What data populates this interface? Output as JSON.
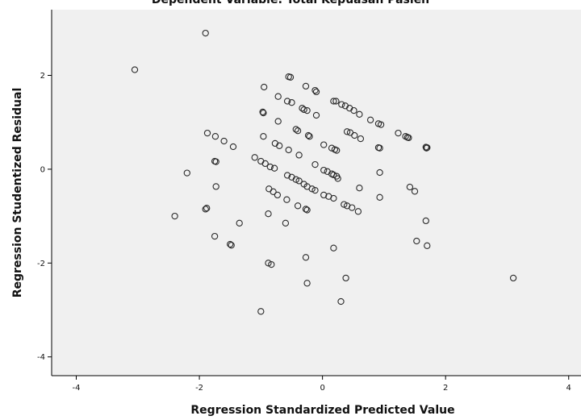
{
  "chart_data": {
    "type": "scatter",
    "title": "Dependent Variable: Total Kepuasan Pasien",
    "xlabel": "Regression Standardized Predicted Value",
    "ylabel": "Regression Studentized Residual",
    "xlim": [
      -4.4,
      4.2
    ],
    "ylim": [
      -4.4,
      3.4
    ],
    "xticks": [
      -4,
      -2,
      0,
      2,
      4
    ],
    "yticks": [
      2,
      0,
      -2,
      -4
    ],
    "xtick_labels": [
      "-4",
      "-2",
      "0",
      "2",
      "4"
    ],
    "ytick_labels": [
      "2",
      "0",
      "-2",
      "-4"
    ],
    "grid": false,
    "colors": {
      "plot_background": "#f0f0f0",
      "marker_stroke": "#2a2a2a",
      "axis": "#000000"
    },
    "points": [
      [
        -3.05,
        2.12
      ],
      [
        -1.9,
        2.9
      ],
      [
        -0.55,
        1.97
      ],
      [
        -0.52,
        1.96
      ],
      [
        -0.95,
        1.75
      ],
      [
        -0.27,
        1.77
      ],
      [
        -0.12,
        1.68
      ],
      [
        -0.1,
        1.65
      ],
      [
        -0.72,
        1.55
      ],
      [
        -0.57,
        1.45
      ],
      [
        -0.5,
        1.42
      ],
      [
        -0.33,
        1.3
      ],
      [
        -0.3,
        1.27
      ],
      [
        -0.25,
        1.25
      ],
      [
        -0.1,
        1.15
      ],
      [
        -0.97,
        1.22
      ],
      [
        -0.96,
        1.2
      ],
      [
        0.18,
        1.45
      ],
      [
        0.22,
        1.45
      ],
      [
        0.31,
        1.38
      ],
      [
        0.37,
        1.35
      ],
      [
        0.44,
        1.3
      ],
      [
        0.51,
        1.25
      ],
      [
        0.6,
        1.17
      ],
      [
        -0.72,
        1.02
      ],
      [
        -0.43,
        0.85
      ],
      [
        -0.4,
        0.82
      ],
      [
        -0.23,
        0.72
      ],
      [
        -0.21,
        0.7
      ],
      [
        0.4,
        0.8
      ],
      [
        0.45,
        0.78
      ],
      [
        0.52,
        0.72
      ],
      [
        0.62,
        0.65
      ],
      [
        0.78,
        1.05
      ],
      [
        0.91,
        0.97
      ],
      [
        0.95,
        0.95
      ],
      [
        1.23,
        0.77
      ],
      [
        1.35,
        0.7
      ],
      [
        1.38,
        0.68
      ],
      [
        1.4,
        0.67
      ],
      [
        -1.87,
        0.77
      ],
      [
        -1.74,
        0.7
      ],
      [
        -1.6,
        0.6
      ],
      [
        -1.45,
        0.48
      ],
      [
        -0.96,
        0.7
      ],
      [
        -0.77,
        0.55
      ],
      [
        -0.7,
        0.5
      ],
      [
        -0.55,
        0.41
      ],
      [
        -0.38,
        0.3
      ],
      [
        0.02,
        0.52
      ],
      [
        0.15,
        0.45
      ],
      [
        0.2,
        0.42
      ],
      [
        0.23,
        0.4
      ],
      [
        0.91,
        0.46
      ],
      [
        0.93,
        0.45
      ],
      [
        1.68,
        0.47
      ],
      [
        1.7,
        0.46
      ],
      [
        1.69,
        0.45
      ],
      [
        -1.75,
        0.17
      ],
      [
        -1.73,
        0.16
      ],
      [
        -2.2,
        -0.08
      ],
      [
        -1.1,
        0.25
      ],
      [
        -1.0,
        0.17
      ],
      [
        -0.93,
        0.12
      ],
      [
        -0.85,
        0.05
      ],
      [
        -0.78,
        0.02
      ],
      [
        -0.57,
        -0.13
      ],
      [
        -0.5,
        -0.17
      ],
      [
        -0.43,
        -0.22
      ],
      [
        -0.38,
        -0.25
      ],
      [
        -0.3,
        -0.32
      ],
      [
        -0.25,
        -0.37
      ],
      [
        -0.17,
        -0.42
      ],
      [
        -0.12,
        -0.45
      ],
      [
        -0.12,
        0.1
      ],
      [
        0.02,
        -0.02
      ],
      [
        0.08,
        -0.05
      ],
      [
        0.15,
        -0.1
      ],
      [
        0.18,
        -0.12
      ],
      [
        0.23,
        -0.15
      ],
      [
        0.25,
        -0.2
      ],
      [
        0.93,
        -0.07
      ],
      [
        1.42,
        -0.38
      ],
      [
        1.5,
        -0.47
      ],
      [
        -1.73,
        -0.37
      ],
      [
        -0.87,
        -0.42
      ],
      [
        -0.8,
        -0.48
      ],
      [
        -0.73,
        -0.55
      ],
      [
        -0.58,
        -0.65
      ],
      [
        -0.4,
        -0.78
      ],
      [
        -0.27,
        -0.85
      ],
      [
        -0.25,
        -0.87
      ],
      [
        0.02,
        -0.55
      ],
      [
        0.1,
        -0.58
      ],
      [
        0.18,
        -0.62
      ],
      [
        0.35,
        -0.75
      ],
      [
        0.4,
        -0.78
      ],
      [
        0.48,
        -0.82
      ],
      [
        0.58,
        -0.9
      ],
      [
        0.6,
        -0.4
      ],
      [
        0.93,
        -0.6
      ],
      [
        -2.4,
        -1.0
      ],
      [
        -1.9,
        -0.85
      ],
      [
        -1.88,
        -0.83
      ],
      [
        -0.88,
        -0.95
      ],
      [
        -0.6,
        -1.15
      ],
      [
        -1.35,
        -1.15
      ],
      [
        -1.75,
        -1.43
      ],
      [
        -1.5,
        -1.6
      ],
      [
        -1.48,
        -1.62
      ],
      [
        1.53,
        -1.53
      ],
      [
        1.68,
        -1.1
      ],
      [
        1.7,
        -1.63
      ],
      [
        -0.88,
        -2.0
      ],
      [
        -0.83,
        -2.03
      ],
      [
        -0.27,
        -1.88
      ],
      [
        0.18,
        -1.68
      ],
      [
        -0.25,
        -2.43
      ],
      [
        0.38,
        -2.32
      ],
      [
        0.3,
        -2.82
      ],
      [
        -1.0,
        -3.03
      ],
      [
        3.1,
        -2.32
      ]
    ]
  }
}
